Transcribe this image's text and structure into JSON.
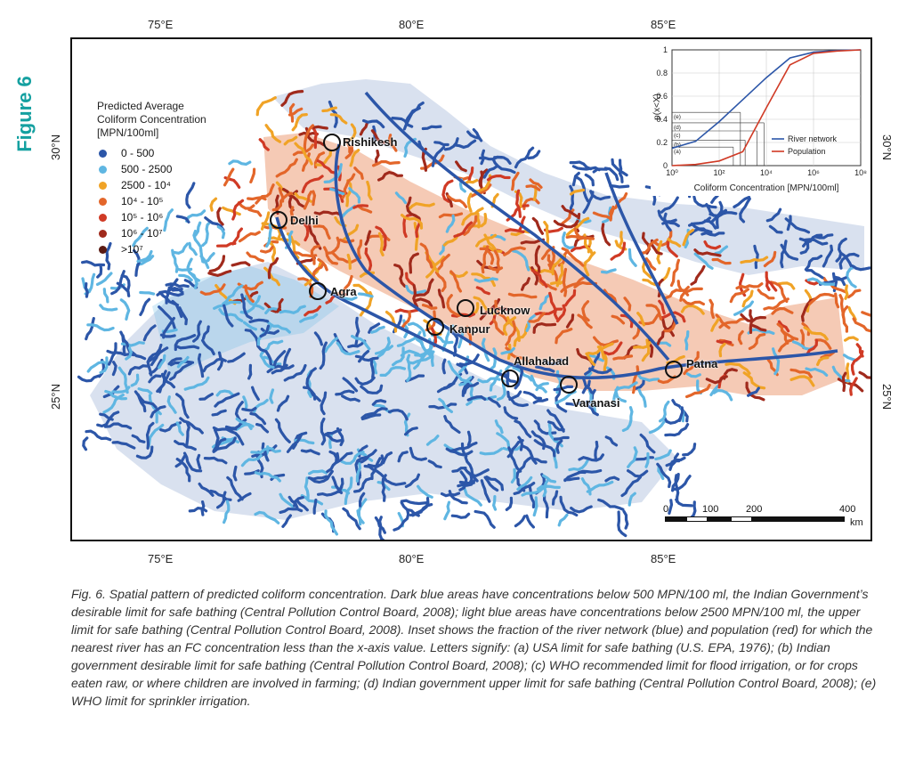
{
  "figure_label": "Figure 6",
  "axes": {
    "lon_top": [
      "75°E",
      "80°E",
      "85°E"
    ],
    "lon_bottom": [
      "75°E",
      "80°E",
      "85°E"
    ],
    "lat_left": [
      "30°N",
      "25°N"
    ],
    "lat_right": [
      "30°N",
      "25°N"
    ]
  },
  "legend": {
    "title_line1": "Predicted Average",
    "title_line2": "Coliform Concentration",
    "title_line3": "[MPN/100ml]",
    "items": [
      {
        "label": "0 - 500",
        "color": "#2c56a8"
      },
      {
        "label": "500 - 2500",
        "color": "#5fb6e2"
      },
      {
        "label": "2500 - 10⁴",
        "color": "#f0a326"
      },
      {
        "label": "10⁴ - 10⁵",
        "color": "#e3662a"
      },
      {
        "label": "10⁵ - 10⁶",
        "color": "#d03a25"
      },
      {
        "label": "10⁶ - 10⁷",
        "color": "#a02a1c"
      },
      {
        "label": ">10⁷",
        "color": "#5a1a12"
      }
    ]
  },
  "cities": [
    "Rishikesh",
    "Delhi",
    "Agra",
    "Lucknow",
    "Kanpur",
    "Allahabad",
    "Varanasi",
    "Patna"
  ],
  "inset": {
    "ylabel": "p(x<X)",
    "xlabel": "Coliform Concentration [MPN/100ml]",
    "yticks": [
      "0",
      "0.2",
      "0.4",
      "0.6",
      "0.8",
      "1"
    ],
    "xticks": [
      "10⁰",
      "10²",
      "10⁴",
      "10⁶",
      "10⁸"
    ],
    "letters": [
      "(e)",
      "(d)",
      "(c)",
      "(b)",
      "(a)"
    ],
    "series": [
      {
        "name": "River network",
        "color": "#2c56a8"
      },
      {
        "name": "Population",
        "color": "#d03a25"
      }
    ]
  },
  "chart_data": {
    "type": "line",
    "ylabel": "p(x<X)",
    "xlabel": "Coliform Concentration [MPN/100ml]",
    "xscale": "log",
    "xlim": [
      1,
      100000000
    ],
    "ylim": [
      0,
      1
    ],
    "series": [
      {
        "name": "River network",
        "x": [
          1,
          10,
          100,
          1000,
          10000,
          100000,
          1000000,
          10000000,
          100000000
        ],
        "y": [
          0.15,
          0.21,
          0.38,
          0.57,
          0.76,
          0.93,
          0.98,
          0.995,
          1.0
        ]
      },
      {
        "name": "Population",
        "x": [
          1,
          10,
          100,
          1000,
          10000,
          100000,
          1000000,
          10000000,
          100000000
        ],
        "y": [
          0.0,
          0.01,
          0.04,
          0.12,
          0.5,
          0.87,
          0.97,
          0.99,
          1.0
        ]
      }
    ],
    "annotations": [
      "(a)",
      "(b)",
      "(c)",
      "(d)",
      "(e)"
    ]
  },
  "scalebar": {
    "ticks": [
      "0",
      "100",
      "200",
      "400"
    ],
    "unit": "km"
  },
  "caption": "Fig. 6. Spatial pattern of predicted coliform concentration. Dark blue areas have concentrations below 500 MPN/100 ml, the Indian Government’s desirable limit for safe bathing (Central Pollution Control Board, 2008); light blue areas have concentrations below 2500 MPN/100 ml, the upper limit for safe bathing (Central Pollution Control Board, 2008). Inset shows the fraction of the river network (blue) and population (red) for which the nearest river has an FC concentration less than the x-axis value. Letters signify: (a) USA limit for safe bathing (U.S. EPA, 1976); (b) Indian government desirable limit for safe bathing (Central Pollution Control Board, 2008); (c) WHO recommended limit for flood irrigation, or for crops eaten raw, or where children are involved in farming; (d) Indian government upper limit for safe bathing (Central Pollution Control Board, 2008); (e) WHO limit for sprinkler irrigation."
}
